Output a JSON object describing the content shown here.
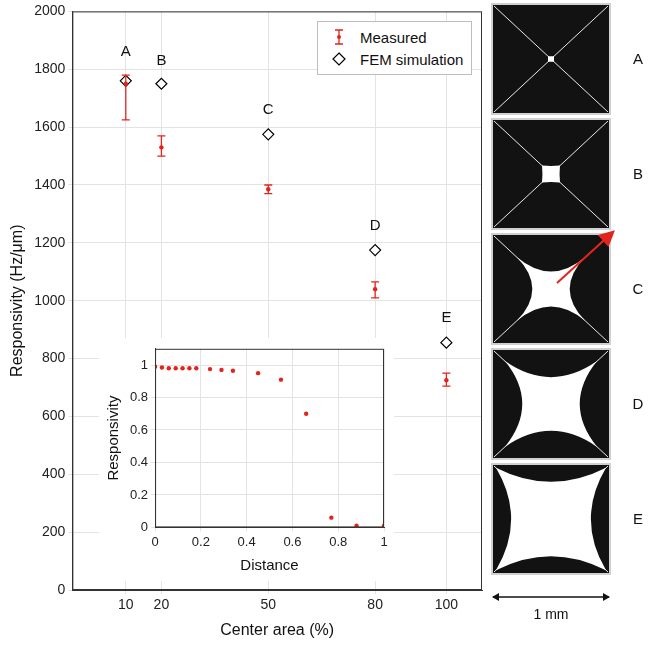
{
  "chart_data": [
    {
      "type": "scatter",
      "x_label": "Center area (%)",
      "y_label": "Responsivity (Hz/μm)",
      "x": [
        10,
        20,
        50,
        80,
        100
      ],
      "series": [
        {
          "name": "Measured",
          "color": "#e3241c",
          "marker": "dot",
          "values": [
            1750,
            1530,
            1385,
            1040,
            725
          ],
          "error_low": [
            1625,
            1500,
            1370,
            1010,
            705
          ],
          "error_high": [
            1780,
            1570,
            1400,
            1065,
            750
          ]
        },
        {
          "name": "FEM simulation",
          "color": "#000000",
          "marker": "diamond",
          "values": [
            1760,
            1750,
            1575,
            1175,
            855
          ]
        }
      ],
      "annotations": [
        {
          "text": "A",
          "x": 10,
          "y": 1860
        },
        {
          "text": "B",
          "x": 20,
          "y": 1830
        },
        {
          "text": "C",
          "x": 50,
          "y": 1660
        },
        {
          "text": "D",
          "x": 80,
          "y": 1260
        },
        {
          "text": "E",
          "x": 100,
          "y": 940
        }
      ],
      "xlim": [
        -5,
        110
      ],
      "xticks": [
        10,
        20,
        50,
        80,
        100
      ],
      "ylim": [
        0,
        2000
      ],
      "yticks": [
        0,
        200,
        400,
        600,
        800,
        1000,
        1200,
        1400,
        1600,
        1800,
        2000
      ],
      "grid": true,
      "legend": "upper right"
    },
    {
      "type": "scatter",
      "x_label": "Distance",
      "y_label": "Responsivity",
      "x": [
        0,
        0.03,
        0.06,
        0.09,
        0.12,
        0.15,
        0.18,
        0.24,
        0.29,
        0.34,
        0.45,
        0.55,
        0.66,
        0.77,
        0.88,
        1.0
      ],
      "series": [
        {
          "color": "#e3241c",
          "marker": "dot",
          "values": [
            0.99,
            0.985,
            0.98,
            0.98,
            0.98,
            0.98,
            0.98,
            0.975,
            0.97,
            0.965,
            0.95,
            0.91,
            0.7,
            0.06,
            0.01,
            0.01
          ]
        }
      ],
      "xlim": [
        0,
        1
      ],
      "xticks": [
        0,
        0.2,
        0.4,
        0.6,
        0.8,
        1
      ],
      "ylim": [
        0,
        1.1
      ],
      "yticks": [
        0,
        0.2,
        0.4,
        0.6,
        0.8,
        1
      ],
      "grid": true
    }
  ],
  "images": {
    "labels": [
      "A",
      "B",
      "C",
      "D",
      "E"
    ],
    "scale_bar": "1 mm"
  }
}
